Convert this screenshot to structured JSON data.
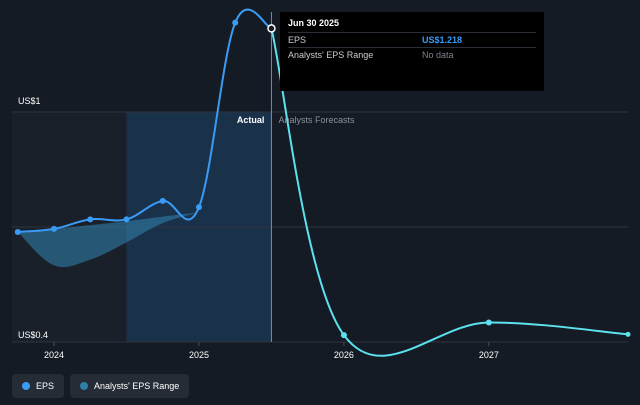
{
  "tooltip": {
    "date": "Jun 30 2025",
    "rows": [
      {
        "label": "EPS",
        "value": "US$1.218"
      },
      {
        "label": "Analysts' EPS Range",
        "value": "No data"
      }
    ]
  },
  "labels": {
    "actual": "Actual",
    "forecasts": "Analysts Forecasts"
  },
  "legend": [
    {
      "label": "EPS",
      "color": "#3a9bf5"
    },
    {
      "label": "Analysts' EPS Range",
      "color": "#2f7fa8"
    }
  ],
  "chart_data": {
    "type": "line",
    "y_tick_labels": [
      "US$1",
      "US$0.4"
    ],
    "ylim": [
      0.4,
      1.0
    ],
    "xlim": [
      2023.71,
      2027.96
    ],
    "x_ticks": [
      2024,
      2025,
      2026,
      2027
    ],
    "x_tick_labels": [
      "2024",
      "2025",
      "2026",
      "2027"
    ],
    "actual_cutoff": 2025.5,
    "past_shade_start": 2024.5,
    "grid": true,
    "legend_position": "bottom-left",
    "series": [
      {
        "name": "EPS",
        "color": "#3a9bf5",
        "forecast_color": "#5ce1ee",
        "points": [
          {
            "x": 2023.75,
            "y": 0.687
          },
          {
            "x": 2024.0,
            "y": 0.695
          },
          {
            "x": 2024.25,
            "y": 0.72
          },
          {
            "x": 2024.5,
            "y": 0.72
          },
          {
            "x": 2024.75,
            "y": 0.768
          },
          {
            "x": 2025.0,
            "y": 0.752
          },
          {
            "x": 2025.25,
            "y": 1.233
          },
          {
            "x": 2025.5,
            "y": 1.218
          },
          {
            "x": 2026.0,
            "y": 0.418
          },
          {
            "x": 2027.0,
            "y": 0.451
          },
          {
            "x": 2027.96,
            "y": 0.42
          }
        ]
      },
      {
        "name": "Analysts' EPS Range",
        "color": "#2f7fa8",
        "upper": [
          {
            "x": 2023.75,
            "y": 0.687
          },
          {
            "x": 2024.0,
            "y": 0.695
          },
          {
            "x": 2024.25,
            "y": 0.705
          },
          {
            "x": 2024.5,
            "y": 0.715
          },
          {
            "x": 2024.75,
            "y": 0.727
          },
          {
            "x": 2025.0,
            "y": 0.738
          }
        ],
        "lower": [
          {
            "x": 2023.75,
            "y": 0.687
          },
          {
            "x": 2024.0,
            "y": 0.6
          },
          {
            "x": 2024.25,
            "y": 0.615
          },
          {
            "x": 2024.5,
            "y": 0.66
          },
          {
            "x": 2024.75,
            "y": 0.71
          },
          {
            "x": 2025.0,
            "y": 0.738
          }
        ]
      }
    ]
  }
}
